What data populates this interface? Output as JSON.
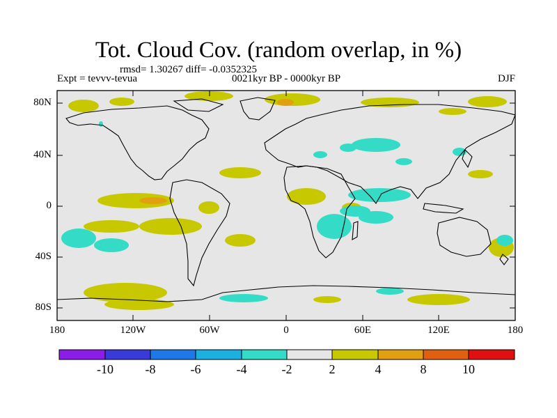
{
  "title": "Tot. Cloud Cov. (random overlap, in %)",
  "stats": "rmsd= 1.30267 diff= -0.0352325",
  "experiment": "Expt = tevvv-tevua",
  "period": "0021kyr BP - 0000kyr BP",
  "season": "DJF",
  "lat_labels": [
    "80N",
    "40N",
    "0",
    "40S",
    "80S"
  ],
  "lon_labels": [
    "180",
    "120W",
    "60W",
    "0",
    "60E",
    "120E",
    "180"
  ],
  "colorbar": {
    "labels": [
      "-10",
      "-8",
      "-6",
      "-4",
      "-2",
      "2",
      "4",
      "8",
      "10"
    ],
    "colors": [
      "#8a1ee8",
      "#3a3ad8",
      "#1f78e8",
      "#1ab0e0",
      "#34dcc8",
      "#e6e6e6",
      "#c8c800",
      "#e0a010",
      "#e06010",
      "#e01010"
    ]
  },
  "colors": {
    "background_field": "#e6e6e6",
    "increase_2_4": "#c8c800",
    "increase_4_8": "#e0a010",
    "decrease_2_4": "#34dcc8"
  }
}
